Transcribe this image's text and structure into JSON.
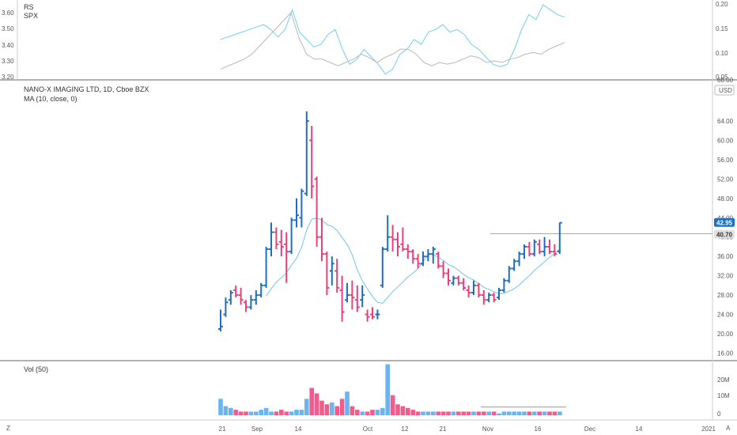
{
  "colors": {
    "up": "#1e6fbf",
    "down": "#e8417a",
    "ma": "#6fc6e8",
    "rs": "#6fd0ee",
    "spx": "#b8b8b8",
    "vol_up": "#6ab5ee",
    "vol_down": "#ee5d8c",
    "price_tag": "#1e6fbf",
    "price_line": "#aaaaaa",
    "hline_tag": "#e0e0e0",
    "grid": "#e6e6e6",
    "border": "#666666"
  },
  "top_panel": {
    "label_rs": "RS",
    "label_spx": "SPX",
    "left_axis_ticks": [
      "3.60",
      "3.50",
      "3.40",
      "3.30",
      "3.20"
    ],
    "right_axis_ticks": [
      "0.20",
      "0.15",
      "0.10",
      "0.05"
    ]
  },
  "price_panel": {
    "title": "NANO-X IMAGING LTD, 1D, Cboe BZX",
    "ma_label": "MA (10, close, 0)",
    "currency": "USD",
    "y_ticks": [
      "64.00",
      "60.00",
      "56.00",
      "52.00",
      "48.00",
      "44.00",
      "40.00",
      "36.00",
      "32.00",
      "28.00",
      "24.00",
      "20.00",
      "16.00"
    ],
    "top_tick": "68.00",
    "last_price_tag": "42.95",
    "line_tag": "40.70"
  },
  "volume_panel": {
    "label": "Vol (50)",
    "y_ticks": [
      "20M",
      "10M",
      "0"
    ]
  },
  "time_axis": {
    "labels": [
      "21",
      "Sep",
      "14",
      "Oct",
      "12",
      "21",
      "Nov",
      "16",
      "Dec",
      "14",
      "2021"
    ],
    "left_icon_label": "Z",
    "right_icon_label": "A"
  },
  "chart_data": {
    "type": "ohlc",
    "ylim": [
      14,
      68
    ],
    "ylabel": "USD",
    "horizontal_line": 40.7,
    "bars": [
      [
        21.0,
        25.0,
        20.5,
        21.5
      ],
      [
        24.0,
        27.5,
        23.5,
        26.5
      ],
      [
        27.0,
        29.0,
        26.0,
        28.5
      ],
      [
        29.0,
        30.0,
        27.5,
        28.0
      ],
      [
        28.0,
        29.5,
        26.0,
        27.0
      ],
      [
        26.5,
        27.0,
        24.5,
        25.5
      ],
      [
        25.5,
        28.0,
        25.0,
        27.0
      ],
      [
        27.0,
        29.0,
        26.0,
        28.0
      ],
      [
        28.0,
        30.5,
        27.5,
        30.0
      ],
      [
        30.0,
        38.0,
        29.5,
        37.5
      ],
      [
        37.5,
        43.0,
        36.0,
        41.0
      ],
      [
        41.0,
        42.0,
        37.5,
        38.5
      ],
      [
        39.0,
        41.5,
        36.0,
        38.0
      ],
      [
        38.5,
        41.0,
        30.5,
        37.0
      ],
      [
        37.0,
        44.0,
        36.5,
        43.5
      ],
      [
        43.5,
        48.0,
        42.0,
        44.5
      ],
      [
        44.0,
        50.0,
        42.0,
        49.5
      ],
      [
        49.0,
        66.0,
        48.5,
        64.0
      ],
      [
        60.0,
        63.0,
        48.0,
        50.5
      ],
      [
        52.0,
        52.5,
        38.0,
        40.0
      ],
      [
        40.0,
        44.0,
        35.0,
        36.5
      ],
      [
        36.5,
        37.0,
        28.0,
        29.5
      ],
      [
        33.0,
        36.0,
        30.0,
        34.5
      ],
      [
        33.0,
        35.5,
        28.5,
        29.5
      ],
      [
        29.0,
        32.0,
        22.5,
        24.5
      ],
      [
        27.0,
        30.5,
        26.5,
        28.0
      ],
      [
        28.0,
        31.0,
        25.0,
        27.5
      ],
      [
        27.0,
        30.0,
        24.5,
        25.5
      ],
      [
        27.0,
        30.0,
        25.5,
        28.0
      ],
      [
        24.0,
        25.0,
        22.5,
        23.5
      ],
      [
        24.0,
        25.5,
        23.0,
        23.5
      ],
      [
        24.0,
        25.0,
        23.0,
        24.0
      ],
      [
        30.0,
        38.0,
        29.5,
        37.5
      ],
      [
        37.5,
        44.5,
        37.0,
        40.0
      ],
      [
        40.0,
        42.5,
        37.0,
        39.5
      ],
      [
        39.5,
        41.0,
        36.0,
        38.0
      ],
      [
        38.5,
        42.0,
        37.0,
        37.5
      ],
      [
        37.5,
        38.5,
        35.5,
        37.0
      ],
      [
        37.0,
        37.5,
        34.5,
        35.5
      ],
      [
        35.5,
        36.5,
        33.5,
        34.5
      ],
      [
        34.5,
        37.0,
        34.0,
        36.0
      ],
      [
        36.0,
        37.5,
        35.0,
        36.5
      ],
      [
        36.5,
        38.0,
        34.5,
        37.5
      ],
      [
        36.5,
        37.0,
        33.5,
        34.0
      ],
      [
        34.0,
        35.0,
        31.5,
        32.5
      ],
      [
        32.5,
        33.5,
        30.0,
        31.0
      ],
      [
        30.5,
        32.0,
        30.0,
        31.5
      ],
      [
        31.5,
        32.0,
        30.0,
        30.5
      ],
      [
        30.5,
        31.5,
        29.0,
        29.5
      ],
      [
        29.0,
        30.0,
        27.5,
        28.5
      ],
      [
        28.5,
        31.0,
        28.0,
        30.0
      ],
      [
        30.0,
        30.5,
        27.5,
        28.0
      ],
      [
        28.0,
        29.0,
        26.0,
        27.0
      ],
      [
        27.0,
        28.5,
        26.5,
        28.0
      ],
      [
        28.0,
        28.5,
        26.5,
        27.0
      ],
      [
        27.5,
        29.5,
        27.0,
        29.0
      ],
      [
        29.0,
        31.5,
        28.5,
        31.0
      ],
      [
        31.0,
        34.0,
        30.5,
        33.5
      ],
      [
        33.5,
        35.5,
        33.0,
        35.0
      ],
      [
        35.0,
        37.0,
        34.0,
        36.5
      ],
      [
        36.5,
        38.5,
        35.5,
        38.0
      ],
      [
        38.0,
        39.0,
        36.0,
        36.5
      ],
      [
        36.5,
        39.5,
        36.0,
        39.0
      ],
      [
        38.5,
        39.5,
        36.5,
        37.0
      ],
      [
        37.0,
        40.0,
        36.0,
        38.0
      ],
      [
        38.0,
        39.5,
        36.5,
        37.0
      ],
      [
        37.0,
        38.5,
        36.0,
        36.5
      ],
      [
        37.0,
        43.0,
        36.5,
        42.95
      ]
    ],
    "ma_values": [
      null,
      null,
      null,
      null,
      null,
      null,
      null,
      null,
      null,
      27.8,
      29.3,
      30.7,
      31.6,
      32.6,
      34.2,
      35.6,
      37.9,
      41.5,
      43.7,
      43.9,
      43.5,
      42.6,
      42.2,
      41.4,
      39.9,
      38.5,
      36.3,
      33.2,
      31.0,
      29.3,
      27.7,
      26.5,
      26.3,
      27.5,
      28.7,
      29.7,
      30.7,
      31.8,
      32.5,
      33.5,
      34.9,
      36.4,
      36.4,
      35.8,
      35.2,
      34.3,
      33.9,
      33.1,
      32.3,
      31.6,
      31.1,
      30.4,
      29.6,
      29.2,
      28.7,
      28.3,
      28.3,
      28.8,
      29.3,
      30.1,
      31.1,
      32.0,
      33.1,
      34.0,
      34.9,
      35.8,
      36.6,
      37.6
    ],
    "volumes": [
      9,
      5,
      4,
      3,
      2,
      2,
      2,
      2,
      3,
      4,
      2,
      2,
      3,
      2,
      2,
      3,
      3,
      9,
      15,
      12,
      8,
      6,
      7,
      5,
      9,
      13,
      5,
      3,
      2,
      2,
      3,
      3,
      4,
      28,
      11,
      6,
      5,
      4,
      3,
      2,
      2,
      2,
      2,
      2,
      2,
      2,
      2,
      2,
      2,
      2,
      2,
      2,
      2,
      2,
      2,
      1,
      2,
      2,
      2,
      2,
      2,
      2,
      2,
      2,
      2,
      2,
      2,
      2
    ],
    "volume_ma": 4.5,
    "rs": [
      0.13,
      0.135,
      0.14,
      0.145,
      0.15,
      0.155,
      0.16,
      0.15,
      0.135,
      0.15,
      0.19,
      0.145,
      0.13,
      0.115,
      0.12,
      0.14,
      0.15,
      0.11,
      0.08,
      0.09,
      0.11,
      0.095,
      0.08,
      0.06,
      0.07,
      0.1,
      0.11,
      0.13,
      0.12,
      0.145,
      0.15,
      0.16,
      0.145,
      0.15,
      0.14,
      0.12,
      0.11,
      0.095,
      0.08,
      0.075,
      0.08,
      0.11,
      0.15,
      0.18,
      0.17,
      0.2,
      0.19,
      0.18,
      0.175
    ],
    "spx": [
      3.26,
      3.28,
      3.3,
      3.32,
      3.35,
      3.4,
      3.45,
      3.5,
      3.55,
      3.6,
      3.45,
      3.35,
      3.32,
      3.32,
      3.3,
      3.28,
      3.3,
      3.32,
      3.35,
      3.33,
      3.3,
      3.33,
      3.35,
      3.38,
      3.38,
      3.35,
      3.3,
      3.28,
      3.3,
      3.29,
      3.3,
      3.32,
      3.34,
      3.33,
      3.3,
      3.31,
      3.3,
      3.32,
      3.33,
      3.35,
      3.36,
      3.35,
      3.38,
      3.4,
      3.42
    ],
    "x_labels": [
      "21",
      "Sep",
      "14",
      "Oct",
      "12",
      "21",
      "Nov",
      "16",
      "Dec",
      "14",
      "2021"
    ]
  }
}
